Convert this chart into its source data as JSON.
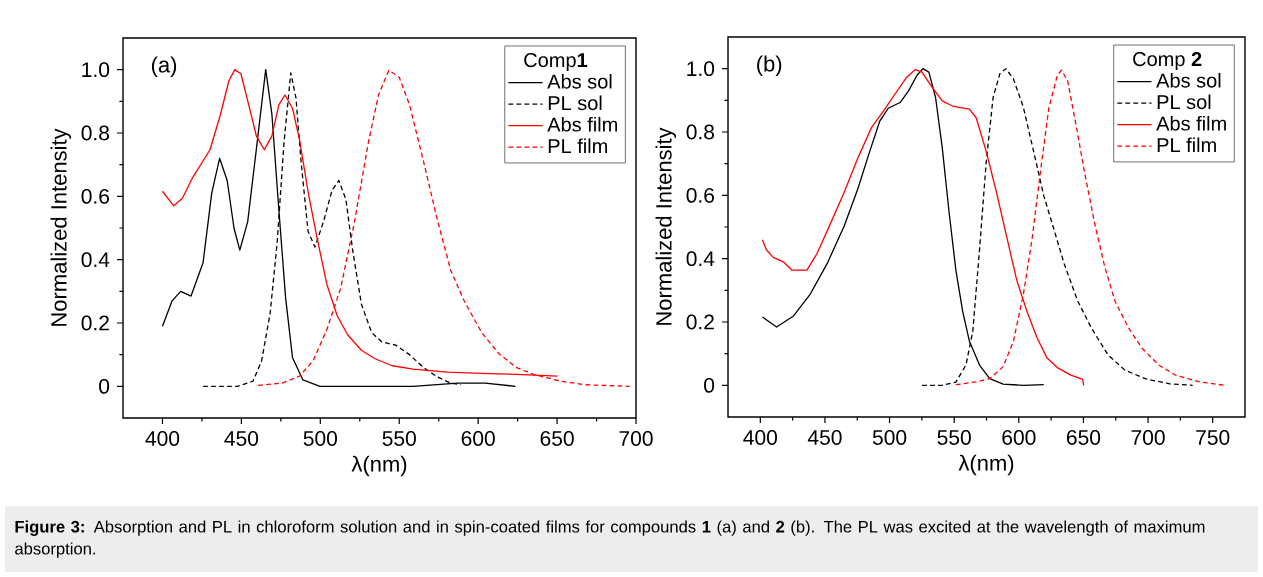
{
  "chart_data": [
    {
      "type": "line",
      "xlabel": "λ(nm)",
      "ylabel": "Normalized Intensity",
      "legend_title": "Comp**1**",
      "legend": "top right",
      "xlim": [
        375,
        700
      ],
      "ylim": [
        -0.1,
        1.1
      ],
      "xticks": [
        400,
        450,
        500,
        550,
        600,
        650,
        700
      ],
      "yticks": [
        0,
        0.2,
        0.4,
        0.6,
        0.8,
        {
          "value": 1,
          "label": "1.0"
        }
      ],
      "annotations": [
        "(a)"
      ],
      "series": [
        {
          "name": "Abs sol",
          "color": "#000000",
          "line_style": "solid",
          "x": [
            400,
            406.1,
            411.5,
            418.1,
            425.7,
            431.2,
            436.2,
            441,
            445.3,
            449,
            454,
            459.5,
            465.4,
            469.3,
            473.7,
            478,
            482.4,
            489,
            499.8,
            526,
            558.7,
            587,
            604.5,
            623.7
          ],
          "values": [
            0.19,
            0.27,
            0.3,
            0.285,
            0.39,
            0.61,
            0.72,
            0.65,
            0.5,
            0.43,
            0.52,
            0.75,
            1.0,
            0.86,
            0.56,
            0.28,
            0.09,
            0.02,
            0.0,
            0.0,
            0.0,
            0.01,
            0.01,
            0.0
          ]
        },
        {
          "name": "PL sol",
          "color": "#000000",
          "line_style": "dashed",
          "x": [
            425.7,
            447.5,
            457.3,
            462.8,
            468.2,
            472.6,
            477,
            481.3,
            484.6,
            487.8,
            492.2,
            496.6,
            502,
            507.5,
            511.8,
            516.2,
            520.5,
            526,
            532.5,
            539,
            547.8,
            556.5,
            565.2,
            574,
            582.7,
            589.2
          ],
          "values": [
            0,
            0,
            0.016,
            0.08,
            0.23,
            0.45,
            0.77,
            0.99,
            0.91,
            0.71,
            0.49,
            0.44,
            0.52,
            0.62,
            0.65,
            0.59,
            0.43,
            0.26,
            0.17,
            0.14,
            0.13,
            0.1,
            0.06,
            0.03,
            0.01,
            0.005
          ]
        },
        {
          "name": "Abs film",
          "color": "#ff0000",
          "line_style": "solid",
          "x": [
            400,
            407.2,
            412.6,
            419.2,
            430.1,
            436.6,
            442.1,
            445.8,
            449.7,
            455.2,
            459.5,
            464.5,
            469.3,
            473.7,
            477.6,
            482.4,
            486.8,
            492.2,
            497.7,
            504.2,
            510.7,
            517.3,
            526,
            534.7,
            545.6,
            558.7,
            580.5,
            602.3,
            624.1,
            650.3
          ],
          "values": [
            0.616,
            0.57,
            0.594,
            0.66,
            0.747,
            0.856,
            0.965,
            1.0,
            0.987,
            0.878,
            0.79,
            0.747,
            0.79,
            0.889,
            0.92,
            0.878,
            0.78,
            0.616,
            0.474,
            0.321,
            0.223,
            0.163,
            0.114,
            0.087,
            0.065,
            0.054,
            0.045,
            0.041,
            0.038,
            0.032
          ]
        },
        {
          "name": "PL film",
          "color": "#ff0000",
          "line_style": "dashed",
          "x": [
            460.6,
            475.9,
            486.8,
            495.5,
            504.2,
            512.9,
            521.6,
            530.4,
            536.9,
            543.4,
            550,
            556.5,
            565.2,
            574,
            582.7,
            591.4,
            602.3,
            613.2,
            624.1,
            635,
            652.4,
            667.7,
            696
          ],
          "values": [
            0.003,
            0.01,
            0.032,
            0.081,
            0.18,
            0.31,
            0.518,
            0.769,
            0.921,
            0.998,
            0.976,
            0.889,
            0.714,
            0.529,
            0.365,
            0.267,
            0.169,
            0.103,
            0.06,
            0.038,
            0.016,
            0.005,
            0
          ]
        }
      ]
    },
    {
      "type": "line",
      "xlabel": "λ(nm)",
      "ylabel": "Normalized Intensity",
      "legend_title": "Comp **2**",
      "legend": "top right",
      "xlim": [
        375,
        775
      ],
      "ylim": [
        -0.1,
        1.1
      ],
      "xticks": [
        400,
        450,
        500,
        550,
        600,
        650,
        700,
        750
      ],
      "yticks": [
        0,
        0.2,
        0.4,
        0.6,
        0.8,
        {
          "value": 1,
          "label": "1.0"
        }
      ],
      "annotations": [
        "(b)",
        "**Figure 3:** Absorption and PL in chloroform solution and in spin-coated films for compounds **1** (a) and **2** (b). The PL was excited at the wavelength of maximum absorption."
      ],
      "series": [
        {
          "name": "Abs sol",
          "color": "#000000",
          "line_style": "solid",
          "x": [
            401.6,
            412.6,
            425.7,
            438.8,
            451.8,
            464.9,
            475.4,
            484.6,
            492.4,
            499,
            508.1,
            514.7,
            521.2,
            525.9,
            530.4,
            535.6,
            540.8,
            546.1,
            551.3,
            556.5,
            561.8,
            569.6,
            577.5,
            587.9,
            603.6,
            619.3
          ],
          "values": [
            0.216,
            0.184,
            0.219,
            0.289,
            0.385,
            0.503,
            0.62,
            0.738,
            0.834,
            0.875,
            0.893,
            0.93,
            0.979,
            1.0,
            0.989,
            0.909,
            0.749,
            0.545,
            0.364,
            0.235,
            0.139,
            0.064,
            0.021,
            0.004,
            0,
            0.002
          ]
        },
        {
          "name": "PL sol",
          "color": "#000000",
          "line_style": "dashed",
          "x": [
            525.1,
            540.8,
            551.3,
            559.1,
            564.4,
            569.6,
            574.8,
            580.1,
            585.3,
            590,
            595.8,
            603.6,
            611.5,
            619.3,
            627.2,
            635,
            645.5,
            656,
            669,
            682.1,
            697.8,
            716.2,
            734.5
          ],
          "values": [
            0,
            0,
            0.01,
            0.064,
            0.171,
            0.428,
            0.706,
            0.909,
            0.984,
            1.0,
            0.968,
            0.877,
            0.738,
            0.599,
            0.492,
            0.385,
            0.267,
            0.182,
            0.096,
            0.048,
            0.021,
            0.005,
            0
          ]
        },
        {
          "name": "Abs film",
          "color": "#ff0000",
          "line_style": "solid",
          "x": [
            401.6,
            404.7,
            410,
            417.8,
            424.4,
            436.1,
            444,
            454.5,
            464.9,
            475.4,
            485.9,
            496.3,
            504.2,
            513.3,
            519.9,
            525.1,
            533,
            540.8,
            548.7,
            561.8,
            567,
            574.8,
            582.7,
            590.5,
            598.4,
            606.2,
            614.1,
            621.9,
            629.8,
            640.3,
            649.4,
            650.2
          ],
          "values": [
            0.46,
            0.428,
            0.404,
            0.39,
            0.364,
            0.364,
            0.417,
            0.513,
            0.61,
            0.717,
            0.813,
            0.872,
            0.92,
            0.973,
            0.997,
            0.989,
            0.941,
            0.898,
            0.882,
            0.872,
            0.845,
            0.738,
            0.61,
            0.471,
            0.332,
            0.235,
            0.15,
            0.086,
            0.056,
            0.032,
            0.019,
            0
          ]
        },
        {
          "name": "PL film",
          "color": "#ff0000",
          "line_style": "dashed",
          "x": [
            551.3,
            567,
            577.5,
            587.9,
            595.8,
            603.6,
            610.2,
            616.7,
            623.3,
            629.8,
            633,
            637.7,
            644.2,
            650.8,
            658.6,
            666.5,
            674.3,
            684.8,
            695.2,
            708.3,
            721.4,
            739.7,
            759.3
          ],
          "values": [
            0.002,
            0.011,
            0.021,
            0.059,
            0.139,
            0.289,
            0.46,
            0.674,
            0.877,
            0.979,
            0.995,
            0.963,
            0.824,
            0.674,
            0.513,
            0.374,
            0.267,
            0.182,
            0.118,
            0.064,
            0.032,
            0.011,
            0
          ]
        }
      ]
    }
  ]
}
